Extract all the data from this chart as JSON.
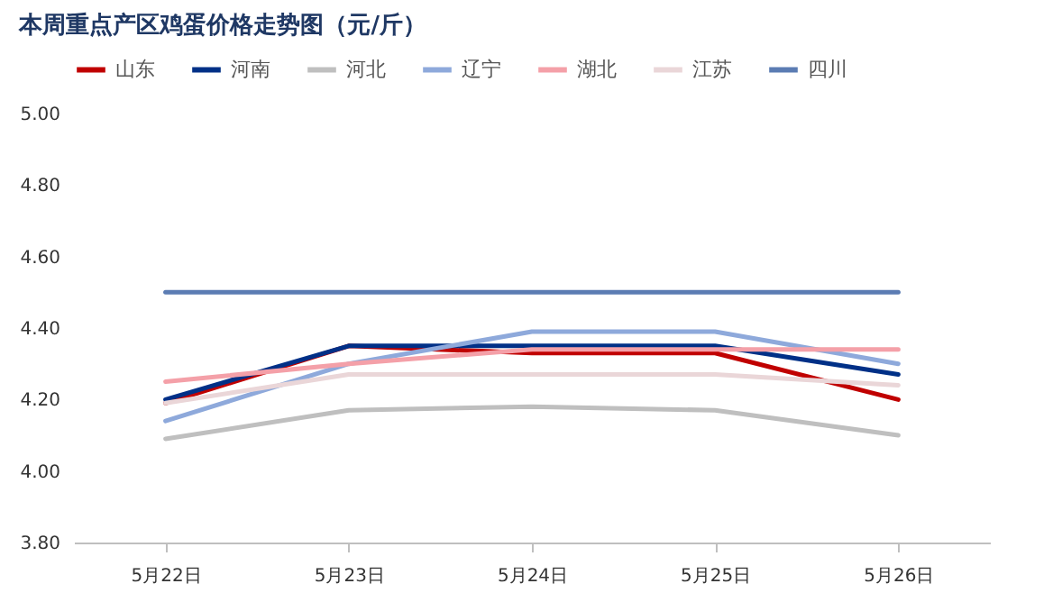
{
  "chart_data": {
    "type": "line",
    "title": "本周重点产区鸡蛋价格走势图（元/斤）",
    "categories": [
      "5月22日",
      "5月23日",
      "5月24日",
      "5月25日",
      "5月26日"
    ],
    "series": [
      {
        "name": "山东",
        "color": "#c00000",
        "values": [
          4.19,
          4.35,
          4.33,
          4.33,
          4.2
        ]
      },
      {
        "name": "河南",
        "color": "#003087",
        "values": [
          4.2,
          4.35,
          4.35,
          4.35,
          4.27
        ]
      },
      {
        "name": "河北",
        "color": "#bfbfbf",
        "values": [
          4.09,
          4.17,
          4.18,
          4.17,
          4.1
        ]
      },
      {
        "name": "辽宁",
        "color": "#8ea9db",
        "values": [
          4.14,
          4.3,
          4.39,
          4.39,
          4.3
        ]
      },
      {
        "name": "湖北",
        "color": "#f4a0a8",
        "values": [
          4.25,
          4.3,
          4.34,
          4.34,
          4.34
        ]
      },
      {
        "name": "江苏",
        "color": "#ead6d8",
        "values": [
          4.19,
          4.27,
          4.27,
          4.27,
          4.24
        ]
      },
      {
        "name": "四川",
        "color": "#5b7cb3",
        "values": [
          4.5,
          4.5,
          4.5,
          4.5,
          4.5
        ]
      }
    ],
    "ylim": [
      3.8,
      5
    ],
    "yticks": [
      {
        "value": 3.8,
        "label": "3.80"
      },
      {
        "value": 4,
        "label": "4.00"
      },
      {
        "value": 4.2,
        "label": "4.20"
      },
      {
        "value": 4.4,
        "label": "4.40"
      },
      {
        "value": 4.6,
        "label": "4.60"
      },
      {
        "value": 4.8,
        "label": "4.80"
      },
      {
        "value": 5,
        "label": "5.00"
      }
    ],
    "grid": false,
    "legend": "top",
    "marker": "none",
    "line_style": "solid"
  }
}
